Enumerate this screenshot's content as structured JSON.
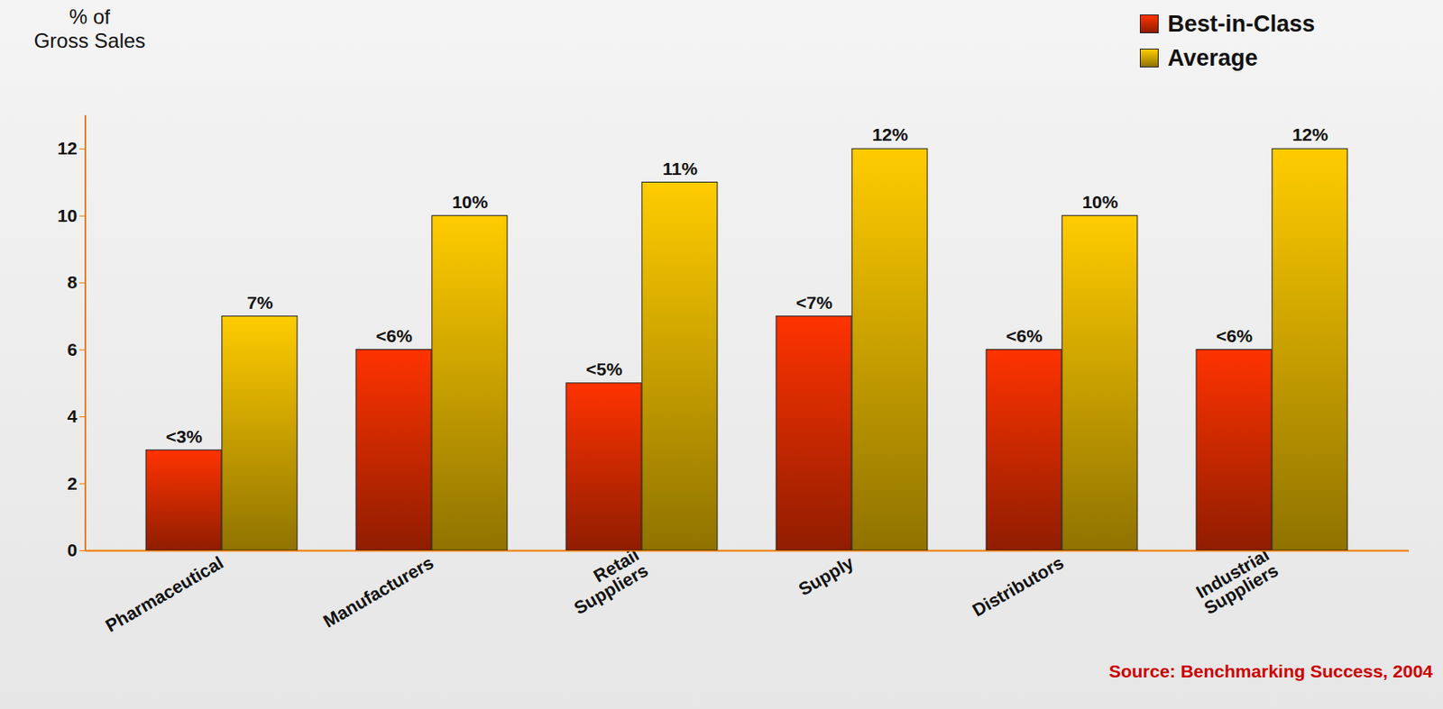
{
  "chart_data": {
    "type": "bar",
    "y_label": "% of Gross Sales",
    "categories": [
      "Pharmaceutical",
      "Manufacturers",
      "Retail Suppliers",
      "Supply",
      "Distributors",
      "Industrial Suppliers"
    ],
    "series": [
      {
        "name": "Best-in-Class",
        "color": "#ff3300",
        "values": [
          3,
          6,
          5,
          7,
          6,
          6
        ],
        "value_labels": [
          "<3%",
          "<6%",
          "<5%",
          "<7%",
          "<6%",
          "<6%"
        ]
      },
      {
        "name": "Average",
        "color": "#ffcc00",
        "values": [
          7,
          10,
          11,
          12,
          10,
          12
        ],
        "value_labels": [
          "7%",
          "10%",
          "11%",
          "12%",
          "10%",
          "12%"
        ]
      }
    ],
    "ylim": [
      0,
      13
    ],
    "yticks": [
      0,
      2,
      4,
      6,
      8,
      10,
      12
    ],
    "data_labels": true,
    "legend": "top-right",
    "annotations": [
      "Source: Benchmarking Success, 2004"
    ]
  }
}
